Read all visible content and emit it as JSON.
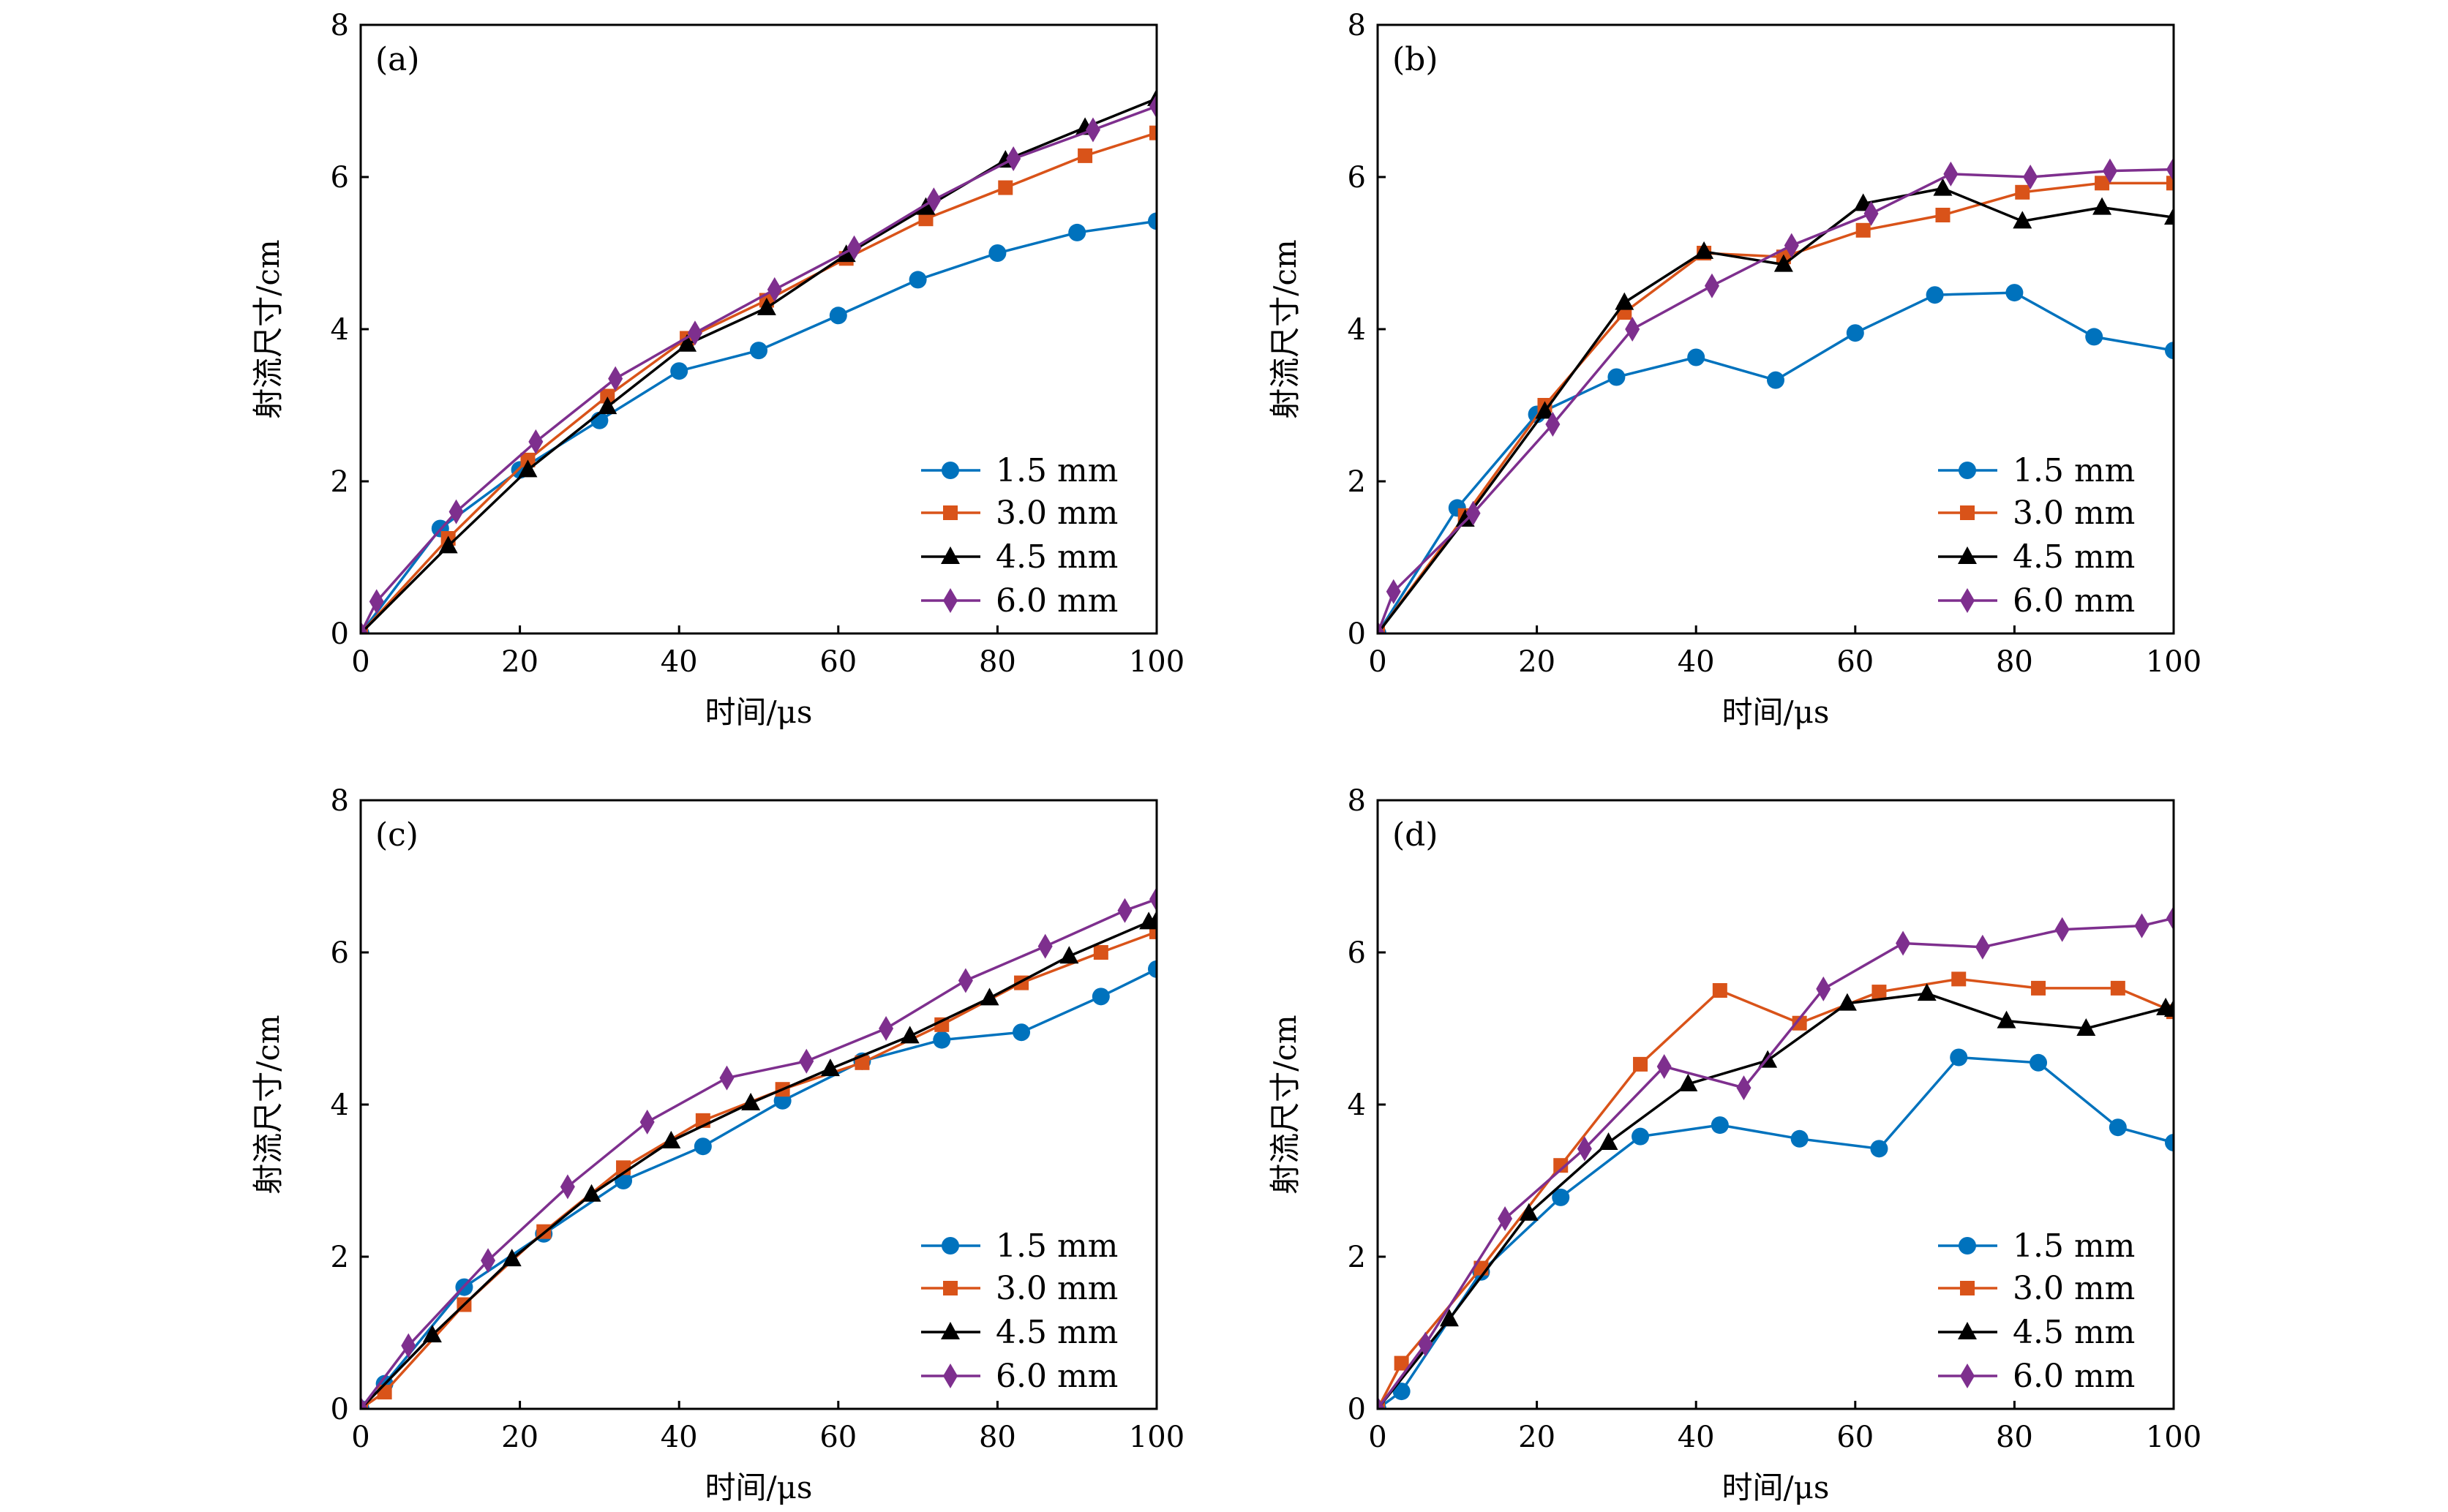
{
  "colors": {
    "1.5 mm": "#0072BD",
    "3.0 mm": "#D95319",
    "4.5 mm": "#000000",
    "6.0 mm": "#7E2F8E"
  },
  "markers": {
    "1.5 mm": "circle",
    "3.0 mm": "square",
    "4.5 mm": "triangle",
    "6.0 mm": "diamond"
  },
  "chart_data": [
    {
      "type": "line",
      "label": "(a)",
      "xlabel": "时间/μs",
      "ylabel": "射流尺寸/cm",
      "xlim": [
        0,
        100
      ],
      "ylim": [
        0,
        8
      ],
      "xticks": [
        "0",
        "20",
        "40",
        "60",
        "80",
        "100"
      ],
      "yticks": [
        "0",
        "2",
        "4",
        "6",
        "8"
      ],
      "grid": false,
      "legend": "bottom-right",
      "series": [
        {
          "name": "1.5 mm",
          "x": [
            0,
            10,
            20,
            30,
            40,
            50,
            60,
            70,
            80,
            90,
            100
          ],
          "y": [
            0,
            1.38,
            2.15,
            2.8,
            3.45,
            3.72,
            4.18,
            4.65,
            5.0,
            5.27,
            5.42
          ]
        },
        {
          "name": "3.0 mm",
          "x": [
            0,
            11,
            21,
            31,
            41,
            51,
            61,
            71,
            81,
            91,
            100
          ],
          "y": [
            0,
            1.25,
            2.28,
            3.12,
            3.88,
            4.38,
            4.93,
            5.45,
            5.86,
            6.28,
            6.58
          ]
        },
        {
          "name": "4.5 mm",
          "x": [
            0,
            11,
            21,
            31,
            41,
            51,
            61,
            71,
            81,
            91,
            100
          ],
          "y": [
            0,
            1.15,
            2.15,
            2.98,
            3.8,
            4.28,
            4.98,
            5.6,
            6.22,
            6.65,
            7.03
          ]
        },
        {
          "name": "6.0 mm",
          "x": [
            0,
            2,
            12,
            22,
            32,
            42,
            52,
            62,
            72,
            82,
            92,
            100
          ],
          "y": [
            0,
            0.42,
            1.6,
            2.52,
            3.35,
            3.95,
            4.52,
            5.07,
            5.7,
            6.24,
            6.62,
            6.93
          ]
        }
      ]
    },
    {
      "type": "line",
      "label": "(b)",
      "xlabel": "时间/μs",
      "ylabel": "射流尺寸/cm",
      "xlim": [
        0,
        100
      ],
      "ylim": [
        0,
        8
      ],
      "xticks": [
        "0",
        "20",
        "40",
        "60",
        "80",
        "100"
      ],
      "yticks": [
        "0",
        "2",
        "4",
        "6",
        "8"
      ],
      "grid": false,
      "legend": "bottom-right",
      "series": [
        {
          "name": "1.5 mm",
          "x": [
            0,
            10,
            20,
            30,
            40,
            50,
            60,
            70,
            80,
            90,
            100
          ],
          "y": [
            0,
            1.65,
            2.88,
            3.37,
            3.63,
            3.33,
            3.95,
            4.45,
            4.48,
            3.9,
            3.72
          ]
        },
        {
          "name": "3.0 mm",
          "x": [
            0,
            11,
            21,
            31,
            41,
            51,
            61,
            71,
            81,
            91,
            100
          ],
          "y": [
            0,
            1.55,
            3.0,
            4.22,
            5.0,
            4.95,
            5.3,
            5.5,
            5.8,
            5.92,
            5.92
          ]
        },
        {
          "name": "4.5 mm",
          "x": [
            0,
            11,
            21,
            31,
            41,
            51,
            61,
            71,
            81,
            91,
            100
          ],
          "y": [
            0,
            1.5,
            2.92,
            4.35,
            5.02,
            4.85,
            5.65,
            5.85,
            5.42,
            5.6,
            5.47
          ]
        },
        {
          "name": "6.0 mm",
          "x": [
            0,
            2,
            12,
            22,
            32,
            42,
            52,
            62,
            72,
            82,
            92,
            100
          ],
          "y": [
            0,
            0.55,
            1.58,
            2.75,
            4.0,
            4.57,
            5.1,
            5.52,
            6.04,
            6.0,
            6.08,
            6.1
          ]
        }
      ]
    },
    {
      "type": "line",
      "label": "(c)",
      "xlabel": "时间/μs",
      "ylabel": "射流尺寸/cm",
      "xlim": [
        0,
        100
      ],
      "ylim": [
        0,
        8
      ],
      "xticks": [
        "0",
        "20",
        "40",
        "60",
        "80",
        "100"
      ],
      "yticks": [
        "0",
        "2",
        "4",
        "6",
        "8"
      ],
      "grid": false,
      "legend": "bottom-right",
      "series": [
        {
          "name": "1.5 mm",
          "x": [
            0,
            3,
            13,
            23,
            33,
            43,
            53,
            63,
            73,
            83,
            93,
            100
          ],
          "y": [
            0,
            0.33,
            1.6,
            2.3,
            3.0,
            3.45,
            4.05,
            4.57,
            4.85,
            4.95,
            5.42,
            5.78
          ]
        },
        {
          "name": "3.0 mm",
          "x": [
            0,
            3,
            13,
            23,
            33,
            43,
            53,
            63,
            73,
            83,
            93,
            100
          ],
          "y": [
            0,
            0.22,
            1.37,
            2.33,
            3.17,
            3.79,
            4.2,
            4.55,
            5.05,
            5.6,
            6.0,
            6.27
          ]
        },
        {
          "name": "4.5 mm",
          "x": [
            0,
            9,
            19,
            29,
            39,
            49,
            59,
            69,
            79,
            89,
            99,
            100
          ],
          "y": [
            0,
            0.97,
            1.97,
            2.82,
            3.52,
            4.02,
            4.47,
            4.9,
            5.4,
            5.95,
            6.4,
            6.42
          ]
        },
        {
          "name": "6.0 mm",
          "x": [
            0,
            6,
            16,
            26,
            36,
            46,
            56,
            66,
            76,
            86,
            96,
            100
          ],
          "y": [
            0,
            0.83,
            1.95,
            2.92,
            3.77,
            4.35,
            4.57,
            5.0,
            5.63,
            6.08,
            6.55,
            6.7
          ]
        }
      ]
    },
    {
      "type": "line",
      "label": "(d)",
      "xlabel": "时间/μs",
      "ylabel": "射流尺寸/cm",
      "xlim": [
        0,
        100
      ],
      "ylim": [
        0,
        8
      ],
      "xticks": [
        "0",
        "20",
        "40",
        "60",
        "80",
        "100"
      ],
      "yticks": [
        "0",
        "2",
        "4",
        "6",
        "8"
      ],
      "grid": false,
      "legend": "bottom-right",
      "series": [
        {
          "name": "1.5 mm",
          "x": [
            0,
            3,
            13,
            23,
            33,
            43,
            53,
            63,
            73,
            83,
            93,
            100
          ],
          "y": [
            0,
            0.23,
            1.8,
            2.78,
            3.58,
            3.73,
            3.55,
            3.42,
            4.62,
            4.55,
            3.7,
            3.5
          ]
        },
        {
          "name": "3.0 mm",
          "x": [
            0,
            3,
            13,
            23,
            33,
            43,
            53,
            63,
            73,
            83,
            93,
            100
          ],
          "y": [
            0,
            0.6,
            1.85,
            3.2,
            4.53,
            5.5,
            5.07,
            5.48,
            5.65,
            5.53,
            5.53,
            5.22
          ]
        },
        {
          "name": "4.5 mm",
          "x": [
            0,
            9,
            19,
            29,
            39,
            49,
            59,
            69,
            79,
            89,
            99,
            100
          ],
          "y": [
            0,
            1.18,
            2.57,
            3.5,
            4.27,
            4.58,
            5.33,
            5.46,
            5.1,
            5.0,
            5.27,
            5.25
          ]
        },
        {
          "name": "6.0 mm",
          "x": [
            0,
            6,
            16,
            26,
            36,
            46,
            56,
            66,
            76,
            86,
            96,
            100
          ],
          "y": [
            0,
            0.85,
            2.5,
            3.42,
            4.5,
            4.22,
            5.52,
            6.12,
            6.07,
            6.3,
            6.35,
            6.45
          ]
        }
      ]
    }
  ]
}
